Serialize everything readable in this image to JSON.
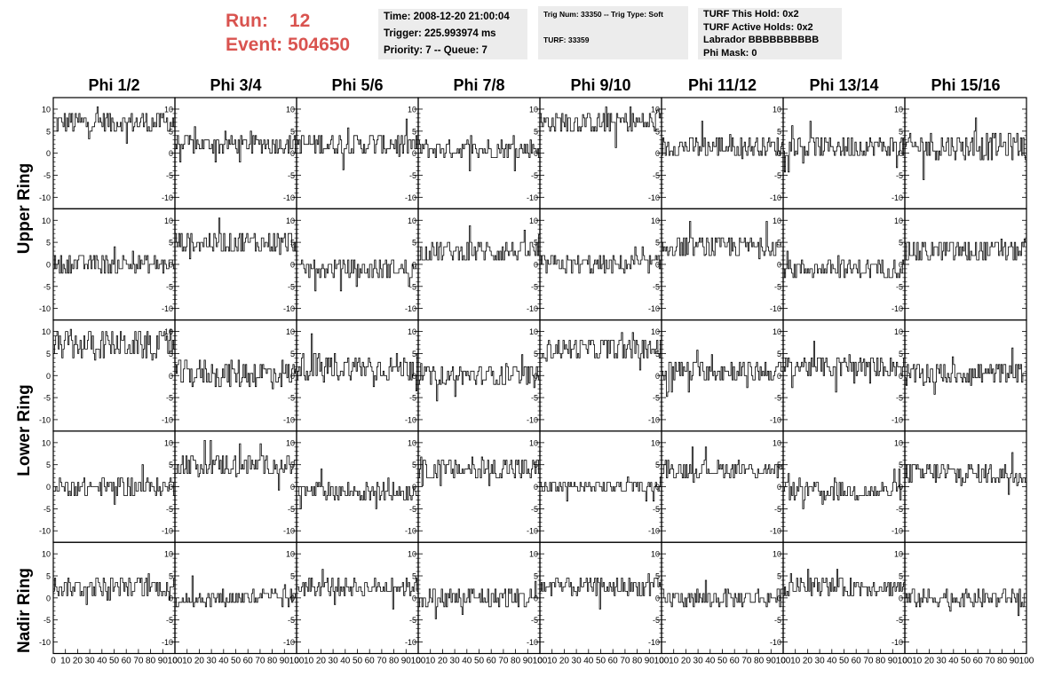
{
  "header": {
    "run_label": "Run:",
    "run_value": "12",
    "event_label": "Event:",
    "event_value": "504650",
    "time": "Time: 2008-12-20 21:00:04",
    "trigger": "Trigger: 225.993974 ms",
    "priority": "Priority: 7 -- Queue: 7",
    "trig_num": "Trig Num: 33350 -- Trig Type: Soft",
    "turf": "TURF: 33359",
    "turf_this_hold": "TURF This Hold: 0x2",
    "turf_active_holds": "TURF Active Holds: 0x2",
    "labrador": "Labrador BBBBBBBBBB",
    "phi_mask": "Phi Mask: 0"
  },
  "columns": [
    "Phi 1/2",
    "Phi 3/4",
    "Phi 5/6",
    "Phi 7/8",
    "Phi 9/10",
    "Phi 11/12",
    "Phi 13/14",
    "Phi 15/16"
  ],
  "ring_labels": [
    {
      "label": "Upper Ring"
    },
    {
      "label": "Lower Ring"
    },
    {
      "label": "Nadir Ring"
    }
  ],
  "chart_data": {
    "type": "line",
    "rows": 5,
    "cols": 8,
    "xlim": [
      0,
      100
    ],
    "ylim": [
      -11,
      11
    ],
    "x_ticks": [
      0,
      10,
      20,
      30,
      40,
      50,
      60,
      70,
      80,
      90,
      100
    ],
    "y_ticks": [
      -10,
      -5,
      0,
      5,
      10
    ],
    "n_samples": 100,
    "panel_baselines": [
      [
        7,
        2,
        2,
        1,
        7,
        1.5,
        1.5,
        1.5
      ],
      [
        0,
        5,
        -1,
        3,
        0,
        4,
        -1,
        3
      ],
      [
        7,
        0.5,
        2,
        0,
        6,
        1,
        2,
        0.5
      ],
      [
        0,
        5,
        -1,
        4,
        0,
        4,
        -1,
        3
      ],
      [
        2.5,
        0,
        2.5,
        0,
        2.5,
        0,
        2.5,
        0
      ]
    ],
    "panel_spreads": [
      [
        2.5,
        2,
        2.5,
        2,
        2.5,
        2.5,
        2.5,
        3
      ],
      [
        2,
        2.5,
        2,
        2.5,
        2,
        2.5,
        2,
        2.5
      ],
      [
        3,
        3,
        3,
        2.5,
        2.5,
        2.5,
        2.5,
        2.5
      ],
      [
        2,
        2.5,
        2,
        2.5,
        1.5,
        2,
        2,
        2.5
      ],
      [
        2,
        2,
        2,
        2.5,
        2,
        2,
        2,
        2
      ]
    ]
  }
}
